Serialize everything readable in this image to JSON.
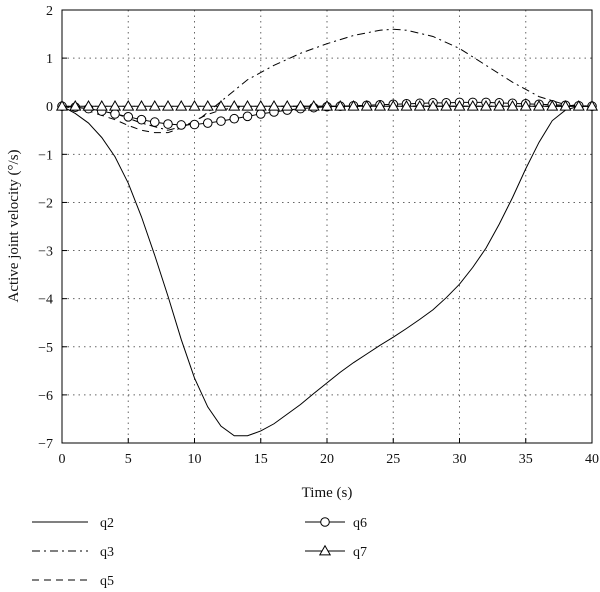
{
  "chart_data": {
    "type": "line",
    "xlabel": "Time (s)",
    "ylabel": "Active joint velocity (°/s)",
    "xlim": [
      0,
      40
    ],
    "ylim": [
      -7,
      2
    ],
    "xticks": [
      0,
      5,
      10,
      15,
      20,
      25,
      30,
      35,
      40
    ],
    "yticks": [
      2,
      1,
      0,
      -1,
      -2,
      -3,
      -4,
      -5,
      -6,
      -7
    ],
    "grid": true,
    "legend_position": "bottom",
    "series": [
      {
        "name": "q2",
        "style": "solid",
        "marker": "none",
        "x": [
          0,
          1,
          2,
          3,
          4,
          5,
          6,
          7,
          8,
          9,
          10,
          11,
          12,
          13,
          14,
          15,
          16,
          17,
          18,
          19,
          20,
          21,
          22,
          23,
          24,
          25,
          26,
          27,
          28,
          29,
          30,
          31,
          32,
          33,
          34,
          35,
          36,
          37,
          38,
          39,
          40
        ],
        "y": [
          0,
          -0.15,
          -0.35,
          -0.65,
          -1.05,
          -1.6,
          -2.3,
          -3.1,
          -3.95,
          -4.85,
          -5.65,
          -6.25,
          -6.65,
          -6.85,
          -6.85,
          -6.75,
          -6.6,
          -6.4,
          -6.2,
          -5.97,
          -5.75,
          -5.53,
          -5.33,
          -5.15,
          -4.97,
          -4.8,
          -4.62,
          -4.43,
          -4.23,
          -3.98,
          -3.7,
          -3.35,
          -2.95,
          -2.45,
          -1.9,
          -1.3,
          -0.75,
          -0.3,
          -0.08,
          0,
          0
        ]
      },
      {
        "name": "q3",
        "style": "dashdot",
        "marker": "none",
        "x": [
          0,
          2,
          4,
          6,
          8,
          10,
          12,
          14,
          16,
          18,
          20,
          22,
          24,
          25,
          26,
          28,
          30,
          32,
          34,
          36,
          38,
          40
        ],
        "y": [
          0,
          -0.05,
          -0.15,
          -0.35,
          -0.5,
          -0.35,
          0.1,
          0.55,
          0.85,
          1.1,
          1.3,
          1.47,
          1.58,
          1.6,
          1.58,
          1.45,
          1.2,
          0.85,
          0.5,
          0.2,
          0.03,
          0
        ]
      },
      {
        "name": "q5",
        "style": "dashed",
        "marker": "none",
        "x": [
          0,
          2,
          4,
          5,
          6,
          7,
          8,
          9,
          10,
          11,
          12,
          13,
          14,
          16,
          18,
          20,
          25,
          30,
          35,
          40
        ],
        "y": [
          0,
          -0.1,
          -0.28,
          -0.4,
          -0.5,
          -0.55,
          -0.55,
          -0.45,
          -0.3,
          -0.17,
          -0.08,
          -0.03,
          0,
          0,
          0,
          0,
          0,
          0,
          0,
          0
        ]
      },
      {
        "name": "q6",
        "style": "solid",
        "marker": "circle",
        "x": [
          0,
          1,
          2,
          3,
          4,
          5,
          6,
          7,
          8,
          9,
          10,
          11,
          12,
          13,
          14,
          15,
          16,
          17,
          18,
          19,
          20,
          21,
          22,
          23,
          24,
          25,
          26,
          27,
          28,
          29,
          30,
          31,
          32,
          33,
          34,
          35,
          36,
          37,
          38,
          39,
          40
        ],
        "y": [
          0,
          -0.02,
          -0.05,
          -0.1,
          -0.16,
          -0.22,
          -0.28,
          -0.33,
          -0.37,
          -0.39,
          -0.38,
          -0.35,
          -0.31,
          -0.26,
          -0.21,
          -0.16,
          -0.12,
          -0.08,
          -0.05,
          -0.03,
          -0.01,
          0,
          0.01,
          0.02,
          0.03,
          0.04,
          0.05,
          0.06,
          0.07,
          0.07,
          0.08,
          0.08,
          0.08,
          0.07,
          0.06,
          0.05,
          0.04,
          0.03,
          0.02,
          0.01,
          0
        ]
      },
      {
        "name": "q7",
        "style": "solid",
        "marker": "triangle",
        "x": [
          0,
          1,
          2,
          3,
          4,
          5,
          6,
          7,
          8,
          9,
          10,
          11,
          12,
          13,
          14,
          15,
          16,
          17,
          18,
          19,
          20,
          21,
          22,
          23,
          24,
          25,
          26,
          27,
          28,
          29,
          30,
          31,
          32,
          33,
          34,
          35,
          36,
          37,
          38,
          39,
          40
        ],
        "y": [
          0,
          0,
          0,
          0,
          0,
          0,
          0,
          0,
          0,
          0,
          0,
          0,
          0,
          0,
          0,
          0,
          0,
          0,
          0,
          0,
          0,
          0,
          0,
          0,
          0,
          0,
          0,
          0,
          0,
          0,
          0,
          0,
          0,
          0,
          0,
          0,
          0,
          0,
          0,
          0,
          0
        ]
      }
    ],
    "legend_layout": [
      {
        "series": "q2",
        "column": 0,
        "row": 0
      },
      {
        "series": "q3",
        "column": 0,
        "row": 1
      },
      {
        "series": "q5",
        "column": 0,
        "row": 2
      },
      {
        "series": "q6",
        "column": 1,
        "row": 0
      },
      {
        "series": "q7",
        "column": 1,
        "row": 1
      }
    ]
  }
}
